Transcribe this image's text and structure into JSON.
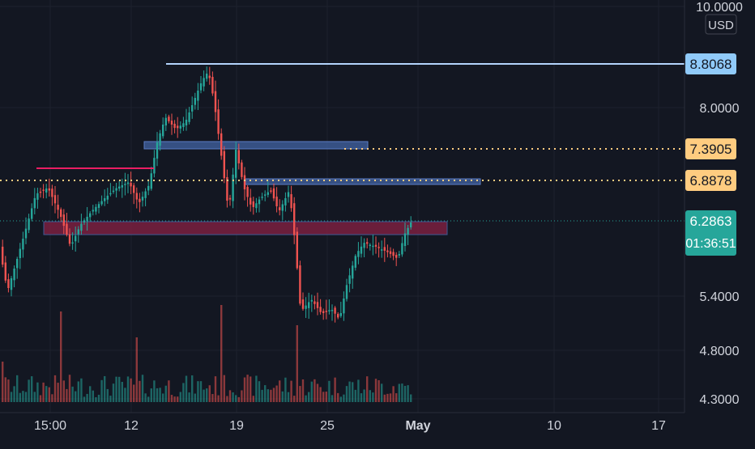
{
  "chart_data": {
    "type": "candlestick",
    "currency": "USD",
    "y_axis_ticks": [
      "10.0000",
      "8.0000",
      "5.4000",
      "4.8000",
      "4.3000"
    ],
    "x_axis_ticks": [
      "15:00",
      "12",
      "19",
      "25",
      "May",
      "10",
      "17"
    ],
    "price_labels": [
      {
        "value": "8.8068",
        "style": "horizontal-line"
      },
      {
        "value": "7.3905",
        "style": "dotted-line"
      },
      {
        "value": "6.8878",
        "style": "dotted-line"
      },
      {
        "value": "6.2863",
        "style": "last-price"
      }
    ],
    "countdown": "01:36:51",
    "price_range_estimate": [
      4.3,
      8.9
    ],
    "drawings": [
      {
        "type": "horizontal-ray",
        "price": 8.8068
      },
      {
        "type": "rectangle-zone",
        "price_top": 7.42,
        "price_bottom": 7.33
      },
      {
        "type": "rectangle-zone",
        "price_top": 6.9,
        "price_bottom": 6.84
      },
      {
        "type": "rectangle-zone",
        "price_top": 6.29,
        "price_bottom": 6.13
      },
      {
        "type": "trend-line",
        "price": 7.05
      }
    ]
  },
  "colors": {
    "background": "#131722",
    "grid": "#1e222d",
    "up": "#26a69a",
    "down": "#ef5350",
    "axis_text": "#d1d4dc",
    "label_blue": "#90caf9",
    "label_orange": "#ffcc80",
    "label_green": "#26a69a",
    "zone_blue": "#3d5a94",
    "zone_red": "#7a2040",
    "magenta": "#e91e63"
  }
}
